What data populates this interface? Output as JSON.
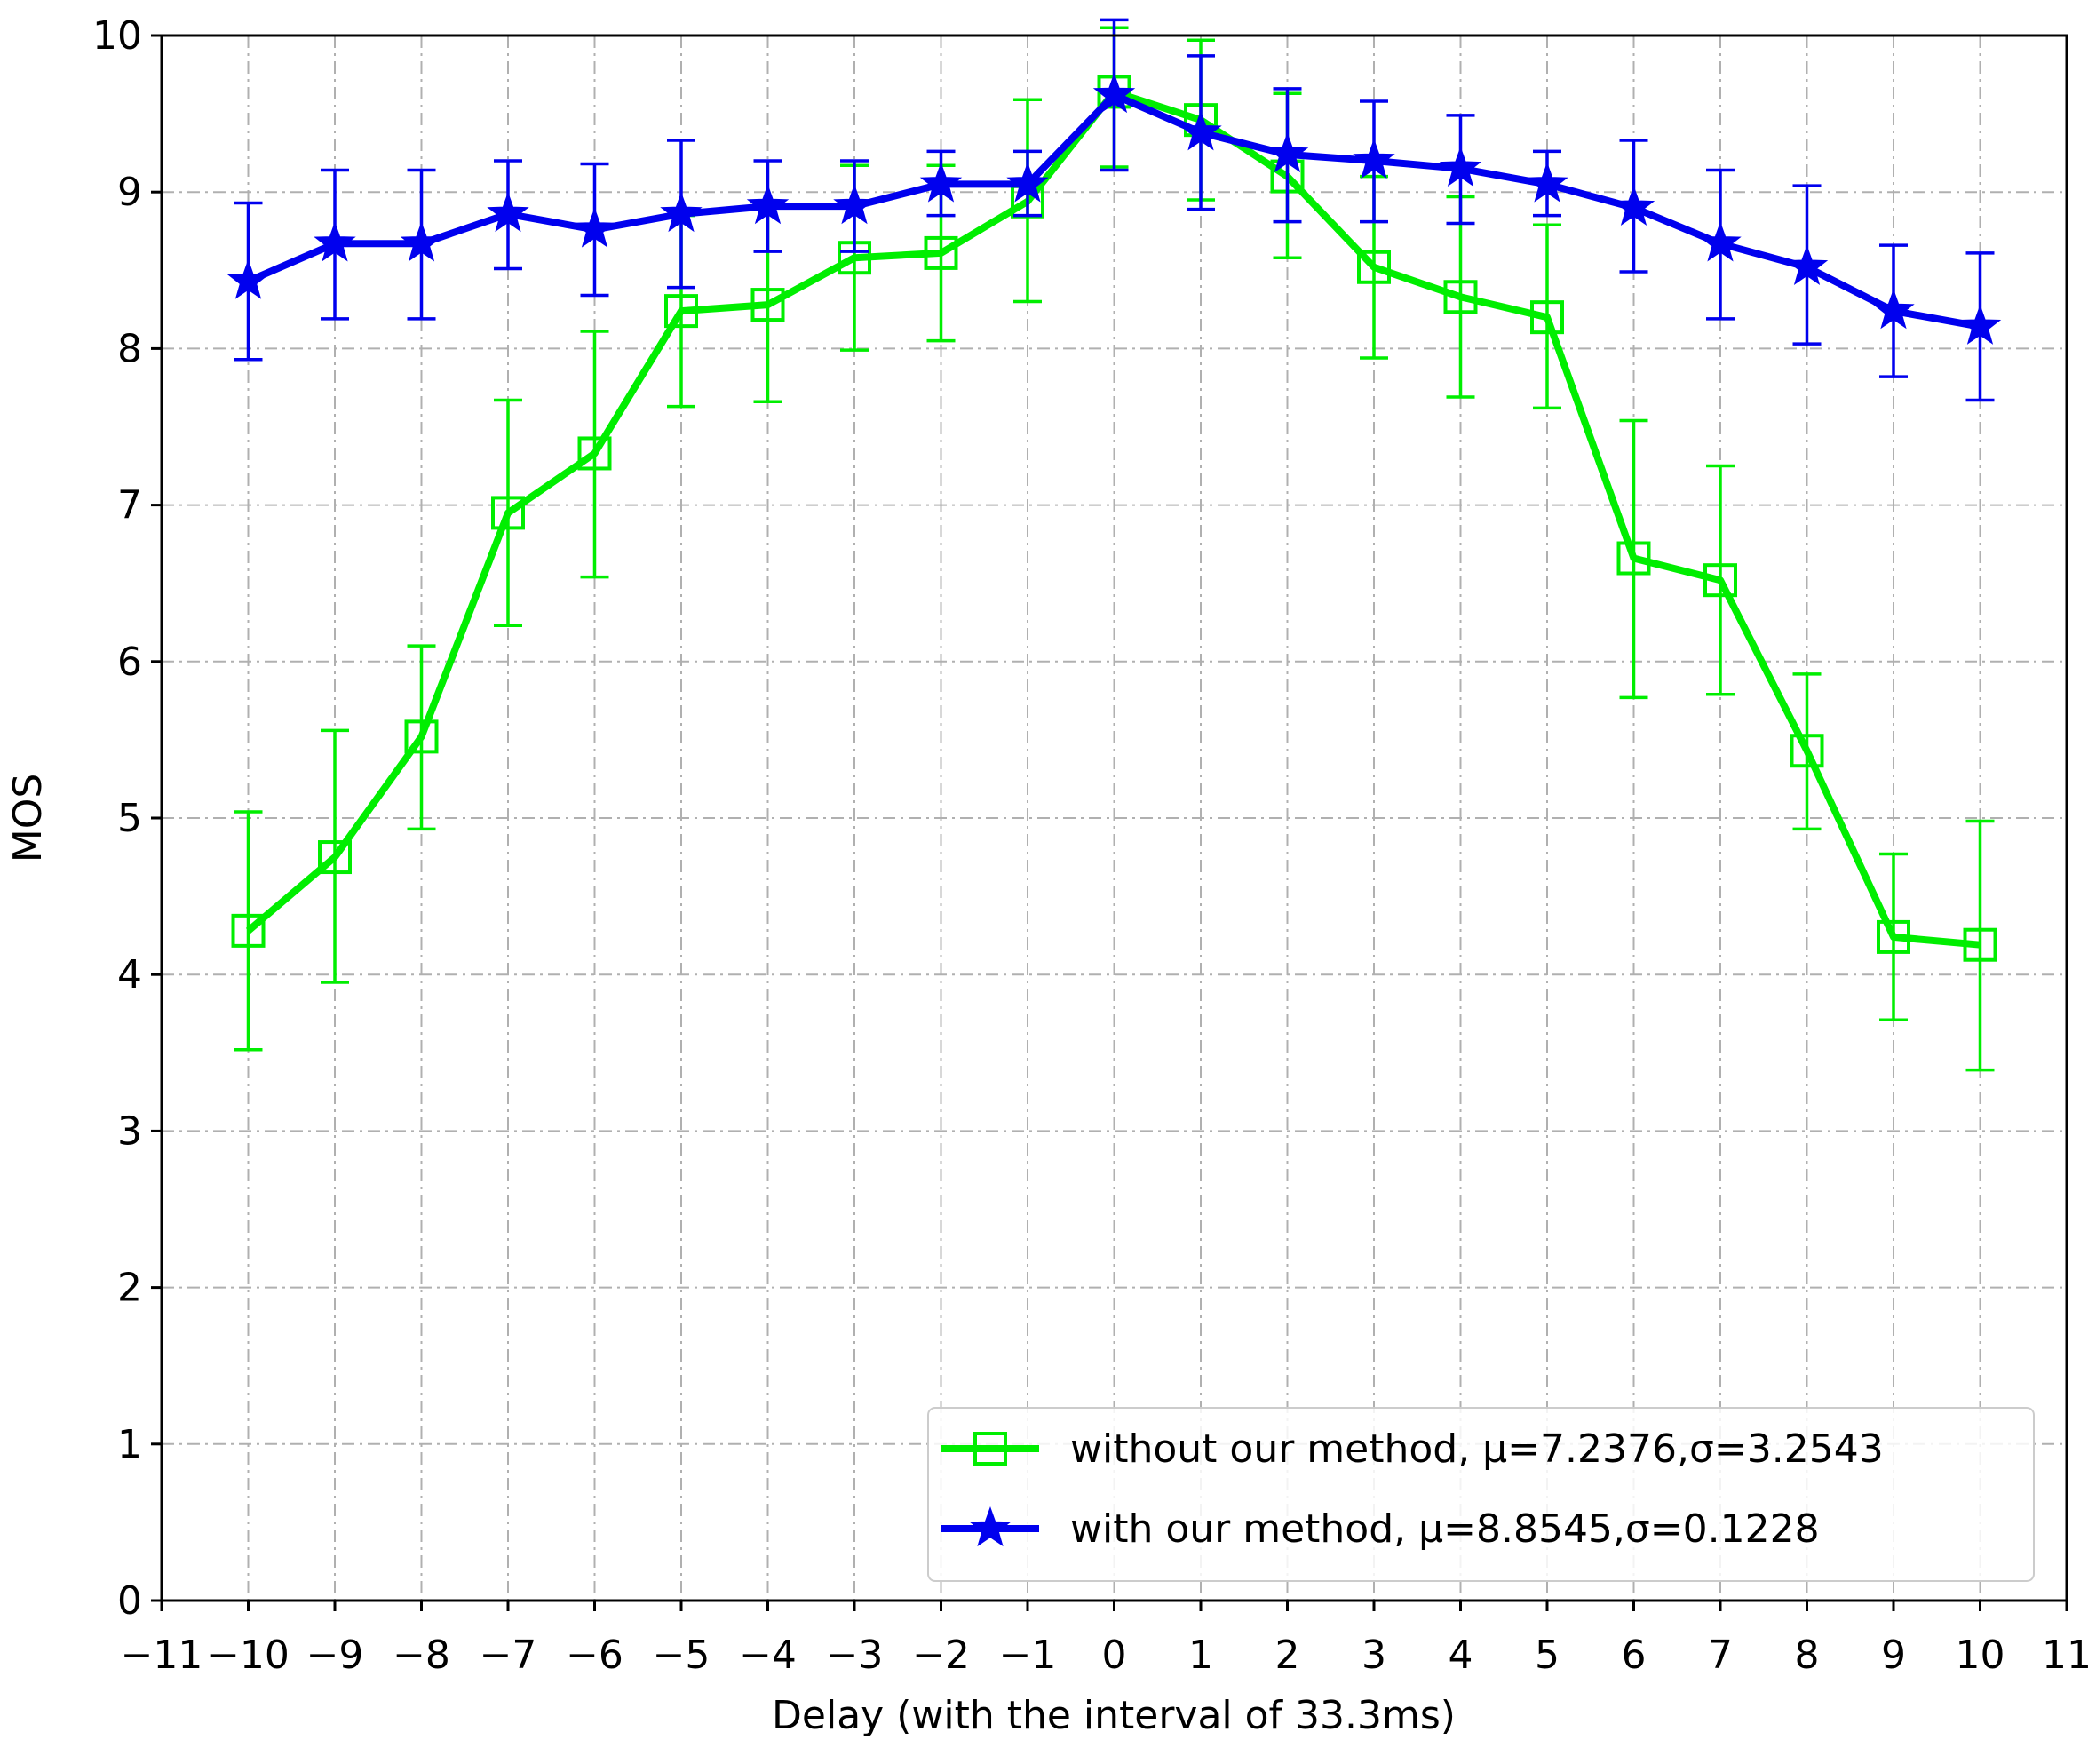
{
  "chart_data": {
    "type": "line",
    "title": "",
    "xlabel": "Delay (with the interval of 33.3ms)",
    "ylabel": "MOS",
    "xlim": [
      -11,
      11
    ],
    "ylim": [
      0,
      10
    ],
    "x_ticks": [
      -11,
      -10,
      -9,
      -8,
      -7,
      -6,
      -5,
      -4,
      -3,
      -2,
      -1,
      0,
      1,
      2,
      3,
      4,
      5,
      6,
      7,
      8,
      9,
      10,
      11
    ],
    "x_tick_labels": [
      "−11",
      "−10",
      "−9",
      "−8",
      "−7",
      "−6",
      "−5",
      "−4",
      "−3",
      "−2",
      "−1",
      "0",
      "1",
      "2",
      "3",
      "4",
      "5",
      "6",
      "7",
      "8",
      "9",
      "10",
      "11"
    ],
    "y_ticks": [
      0,
      1,
      2,
      3,
      4,
      5,
      6,
      7,
      8,
      9,
      10
    ],
    "y_tick_labels": [
      "0",
      "1",
      "2",
      "3",
      "4",
      "5",
      "6",
      "7",
      "8",
      "9",
      "10"
    ],
    "grid": true,
    "legend_position": "lower-right",
    "x": [
      -10,
      -9,
      -8,
      -7,
      -6,
      -5,
      -4,
      -3,
      -2,
      -1,
      0,
      1,
      2,
      3,
      4,
      5,
      6,
      7,
      8,
      9,
      10
    ],
    "series": [
      {
        "name": "without our method, μ=7.2376,σ=3.2543",
        "color": "#00ee00",
        "marker": "square",
        "values": [
          4.28,
          4.75,
          5.52,
          6.95,
          7.33,
          8.24,
          8.28,
          8.58,
          8.61,
          8.94,
          9.64,
          9.46,
          9.1,
          8.52,
          8.33,
          8.2,
          6.66,
          6.52,
          5.43,
          4.24,
          4.19
        ],
        "error_low": [
          3.52,
          3.95,
          4.93,
          6.23,
          6.54,
          7.63,
          7.66,
          7.99,
          8.05,
          8.3,
          9.16,
          8.95,
          8.58,
          7.94,
          7.69,
          7.62,
          5.77,
          5.79,
          4.93,
          3.71,
          3.39
        ],
        "error_high": [
          5.04,
          5.56,
          6.1,
          7.67,
          8.11,
          8.85,
          8.9,
          9.17,
          9.17,
          9.59,
          10.05,
          9.97,
          9.63,
          9.1,
          8.97,
          8.79,
          7.54,
          7.25,
          5.92,
          4.77,
          4.98
        ]
      },
      {
        "name": "with our method, μ=8.8545,σ=0.1228",
        "color": "#0000ee",
        "marker": "star",
        "values": [
          8.43,
          8.67,
          8.67,
          8.86,
          8.76,
          8.86,
          8.91,
          8.91,
          9.05,
          9.05,
          9.62,
          9.38,
          9.24,
          9.2,
          9.15,
          9.05,
          8.9,
          8.67,
          8.52,
          8.24,
          8.14
        ],
        "error_low": [
          7.93,
          8.19,
          8.19,
          8.51,
          8.34,
          8.39,
          8.62,
          8.62,
          8.85,
          8.85,
          9.14,
          8.89,
          8.81,
          8.81,
          8.8,
          8.85,
          8.49,
          8.19,
          8.03,
          7.82,
          7.67
        ],
        "error_high": [
          8.93,
          9.14,
          9.14,
          9.2,
          9.18,
          9.33,
          9.2,
          9.2,
          9.26,
          9.26,
          10.1,
          9.87,
          9.66,
          9.58,
          9.49,
          9.26,
          9.33,
          9.14,
          9.04,
          8.66,
          8.61
        ]
      }
    ]
  }
}
